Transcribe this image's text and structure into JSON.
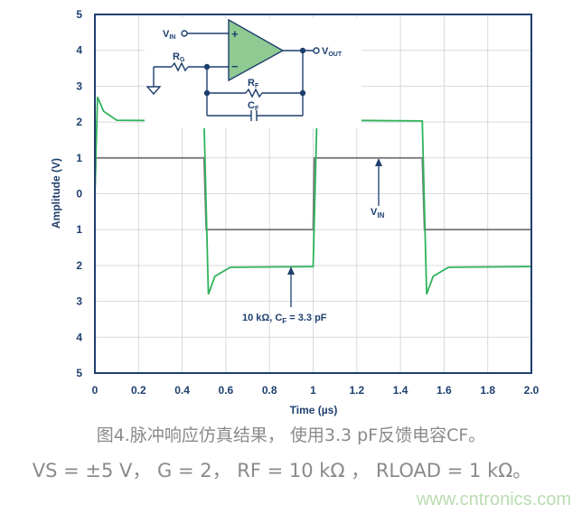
{
  "chart_data": {
    "type": "line",
    "xlabel": "Time (µs)",
    "ylabel": "Amplitude (V)",
    "xlim": [
      0,
      2.0
    ],
    "ylim": [
      -5,
      5
    ],
    "x_ticks": [
      "0",
      "0.2",
      "0.4",
      "0.6",
      "0.8",
      "1",
      "1.2",
      "1.4",
      "1.6",
      "1.8",
      "2.0"
    ],
    "y_ticks": [
      "5",
      "4",
      "3",
      "2",
      "1",
      "0",
      "1",
      "2",
      "3",
      "4",
      "5"
    ],
    "grid": true,
    "series": [
      {
        "name": "VIN",
        "color": "#7a7a7a",
        "points": [
          [
            0,
            0
          ],
          [
            0.005,
            1
          ],
          [
            0.5,
            1
          ],
          [
            0.51,
            -1
          ],
          [
            1.0,
            -1
          ],
          [
            1.005,
            1
          ],
          [
            1.5,
            1
          ],
          [
            1.51,
            -1
          ],
          [
            2.0,
            -1
          ]
        ]
      },
      {
        "name": "",
        "color": "#2fb35a",
        "points": [
          [
            0,
            0
          ],
          [
            0.012,
            2.7
          ],
          [
            0.04,
            2.3
          ],
          [
            0.1,
            2.05
          ],
          [
            0.5,
            2.03
          ],
          [
            0.52,
            -2.8
          ],
          [
            0.55,
            -2.3
          ],
          [
            0.62,
            -2.05
          ],
          [
            1.0,
            -2.03
          ],
          [
            1.02,
            2.8
          ],
          [
            1.05,
            2.3
          ],
          [
            1.12,
            2.05
          ],
          [
            1.5,
            2.03
          ],
          [
            1.52,
            -2.8
          ],
          [
            1.55,
            -2.3
          ],
          [
            1.62,
            -2.05
          ],
          [
            2.0,
            -2.03
          ]
        ]
      }
    ],
    "annotations": [
      {
        "text": "V",
        "sub": "IN",
        "x": 1.3,
        "y": 1
      },
      {
        "text": "10 kΩ, C",
        "sub": "F",
        "rest": " = 3.3 pF",
        "x": 0.9,
        "y": -2
      }
    ],
    "inset_circuit": {
      "vin": "V",
      "vin_sub": "IN",
      "vout": "V",
      "vout_sub": "OUT",
      "rg": "R",
      "rg_sub": "G",
      "rf": "R",
      "rf_sub": "F",
      "cf": "C",
      "cf_sub": "F",
      "plus": "+",
      "minus": "−",
      "opamp_color": "#8fca92"
    }
  },
  "caption": {
    "line1": "图4.脉冲响应仿真结果， 使用3.3 pF反馈电容CF。",
    "line2": "VS = ±5 V， G = 2， RF = 10 kΩ ， RLOAD = 1 kΩ。"
  },
  "watermark": "www.cntronics.com"
}
